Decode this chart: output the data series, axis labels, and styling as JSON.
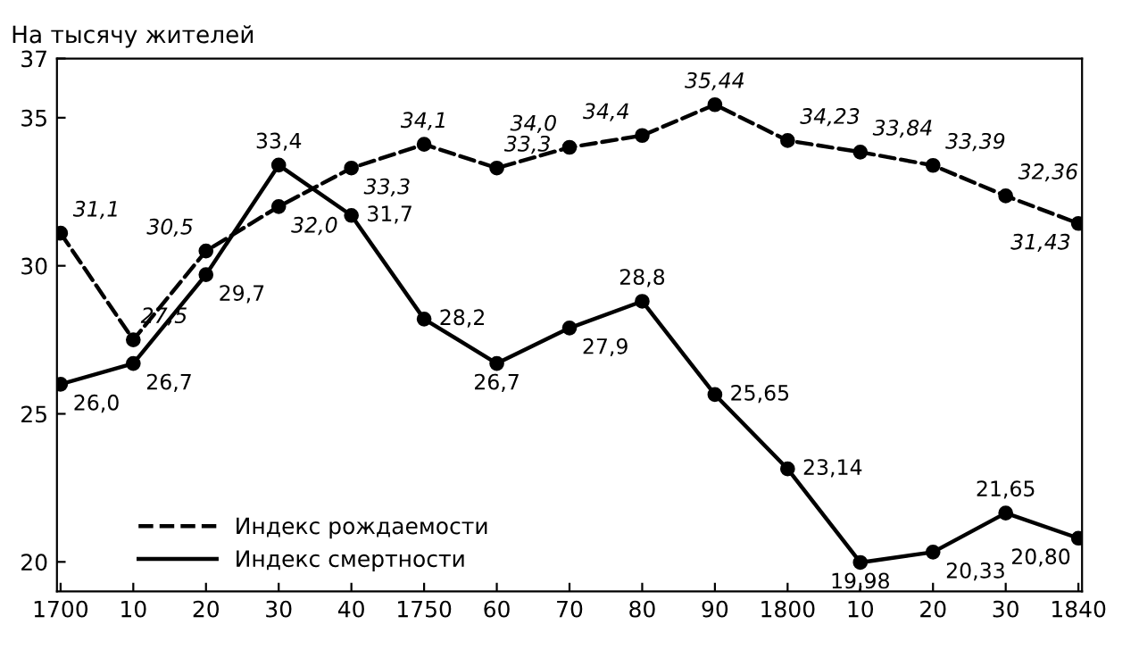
{
  "chart_data": {
    "type": "line",
    "ylabel": "На тысячу жителей",
    "categories": [
      "1700",
      "10",
      "20",
      "30",
      "40",
      "1750",
      "60",
      "70",
      "80",
      "90",
      "1800",
      "10",
      "20",
      "30",
      "1840"
    ],
    "series": [
      {
        "name": "Индекс рождаемости",
        "color": "#000000",
        "line_style": "dashed",
        "values": [
          31.1,
          27.5,
          30.5,
          32.0,
          33.3,
          34.1,
          33.3,
          34.0,
          34.4,
          35.44,
          34.23,
          33.84,
          33.39,
          32.36,
          31.43
        ],
        "value_labels": [
          "31,1",
          "27,5",
          "30,5",
          "32,0",
          "33,3",
          "34,1",
          "33,3",
          "34,0",
          "34,4",
          "35,44",
          "34,23",
          "33,84",
          "33,39",
          "32,36",
          "31,43"
        ]
      },
      {
        "name": "Индекс смертности",
        "color": "#000000",
        "line_style": "solid",
        "values": [
          26.0,
          26.7,
          29.7,
          33.4,
          31.7,
          28.2,
          26.7,
          27.9,
          28.8,
          25.65,
          23.14,
          19.98,
          20.33,
          21.65,
          20.8
        ],
        "value_labels": [
          "26,0",
          "26,7",
          "29,7",
          "33,4",
          "31,7",
          "28,2",
          "26,7",
          "27,9",
          "28,8",
          "25,65",
          "23,14",
          "19,98",
          "20,33",
          "21,65",
          "20,80"
        ]
      }
    ],
    "ylim": [
      19.0,
      37
    ],
    "yticks": [
      20,
      25,
      30,
      35,
      37
    ],
    "grid": false,
    "legend": "bottom left",
    "marker": "circle"
  }
}
